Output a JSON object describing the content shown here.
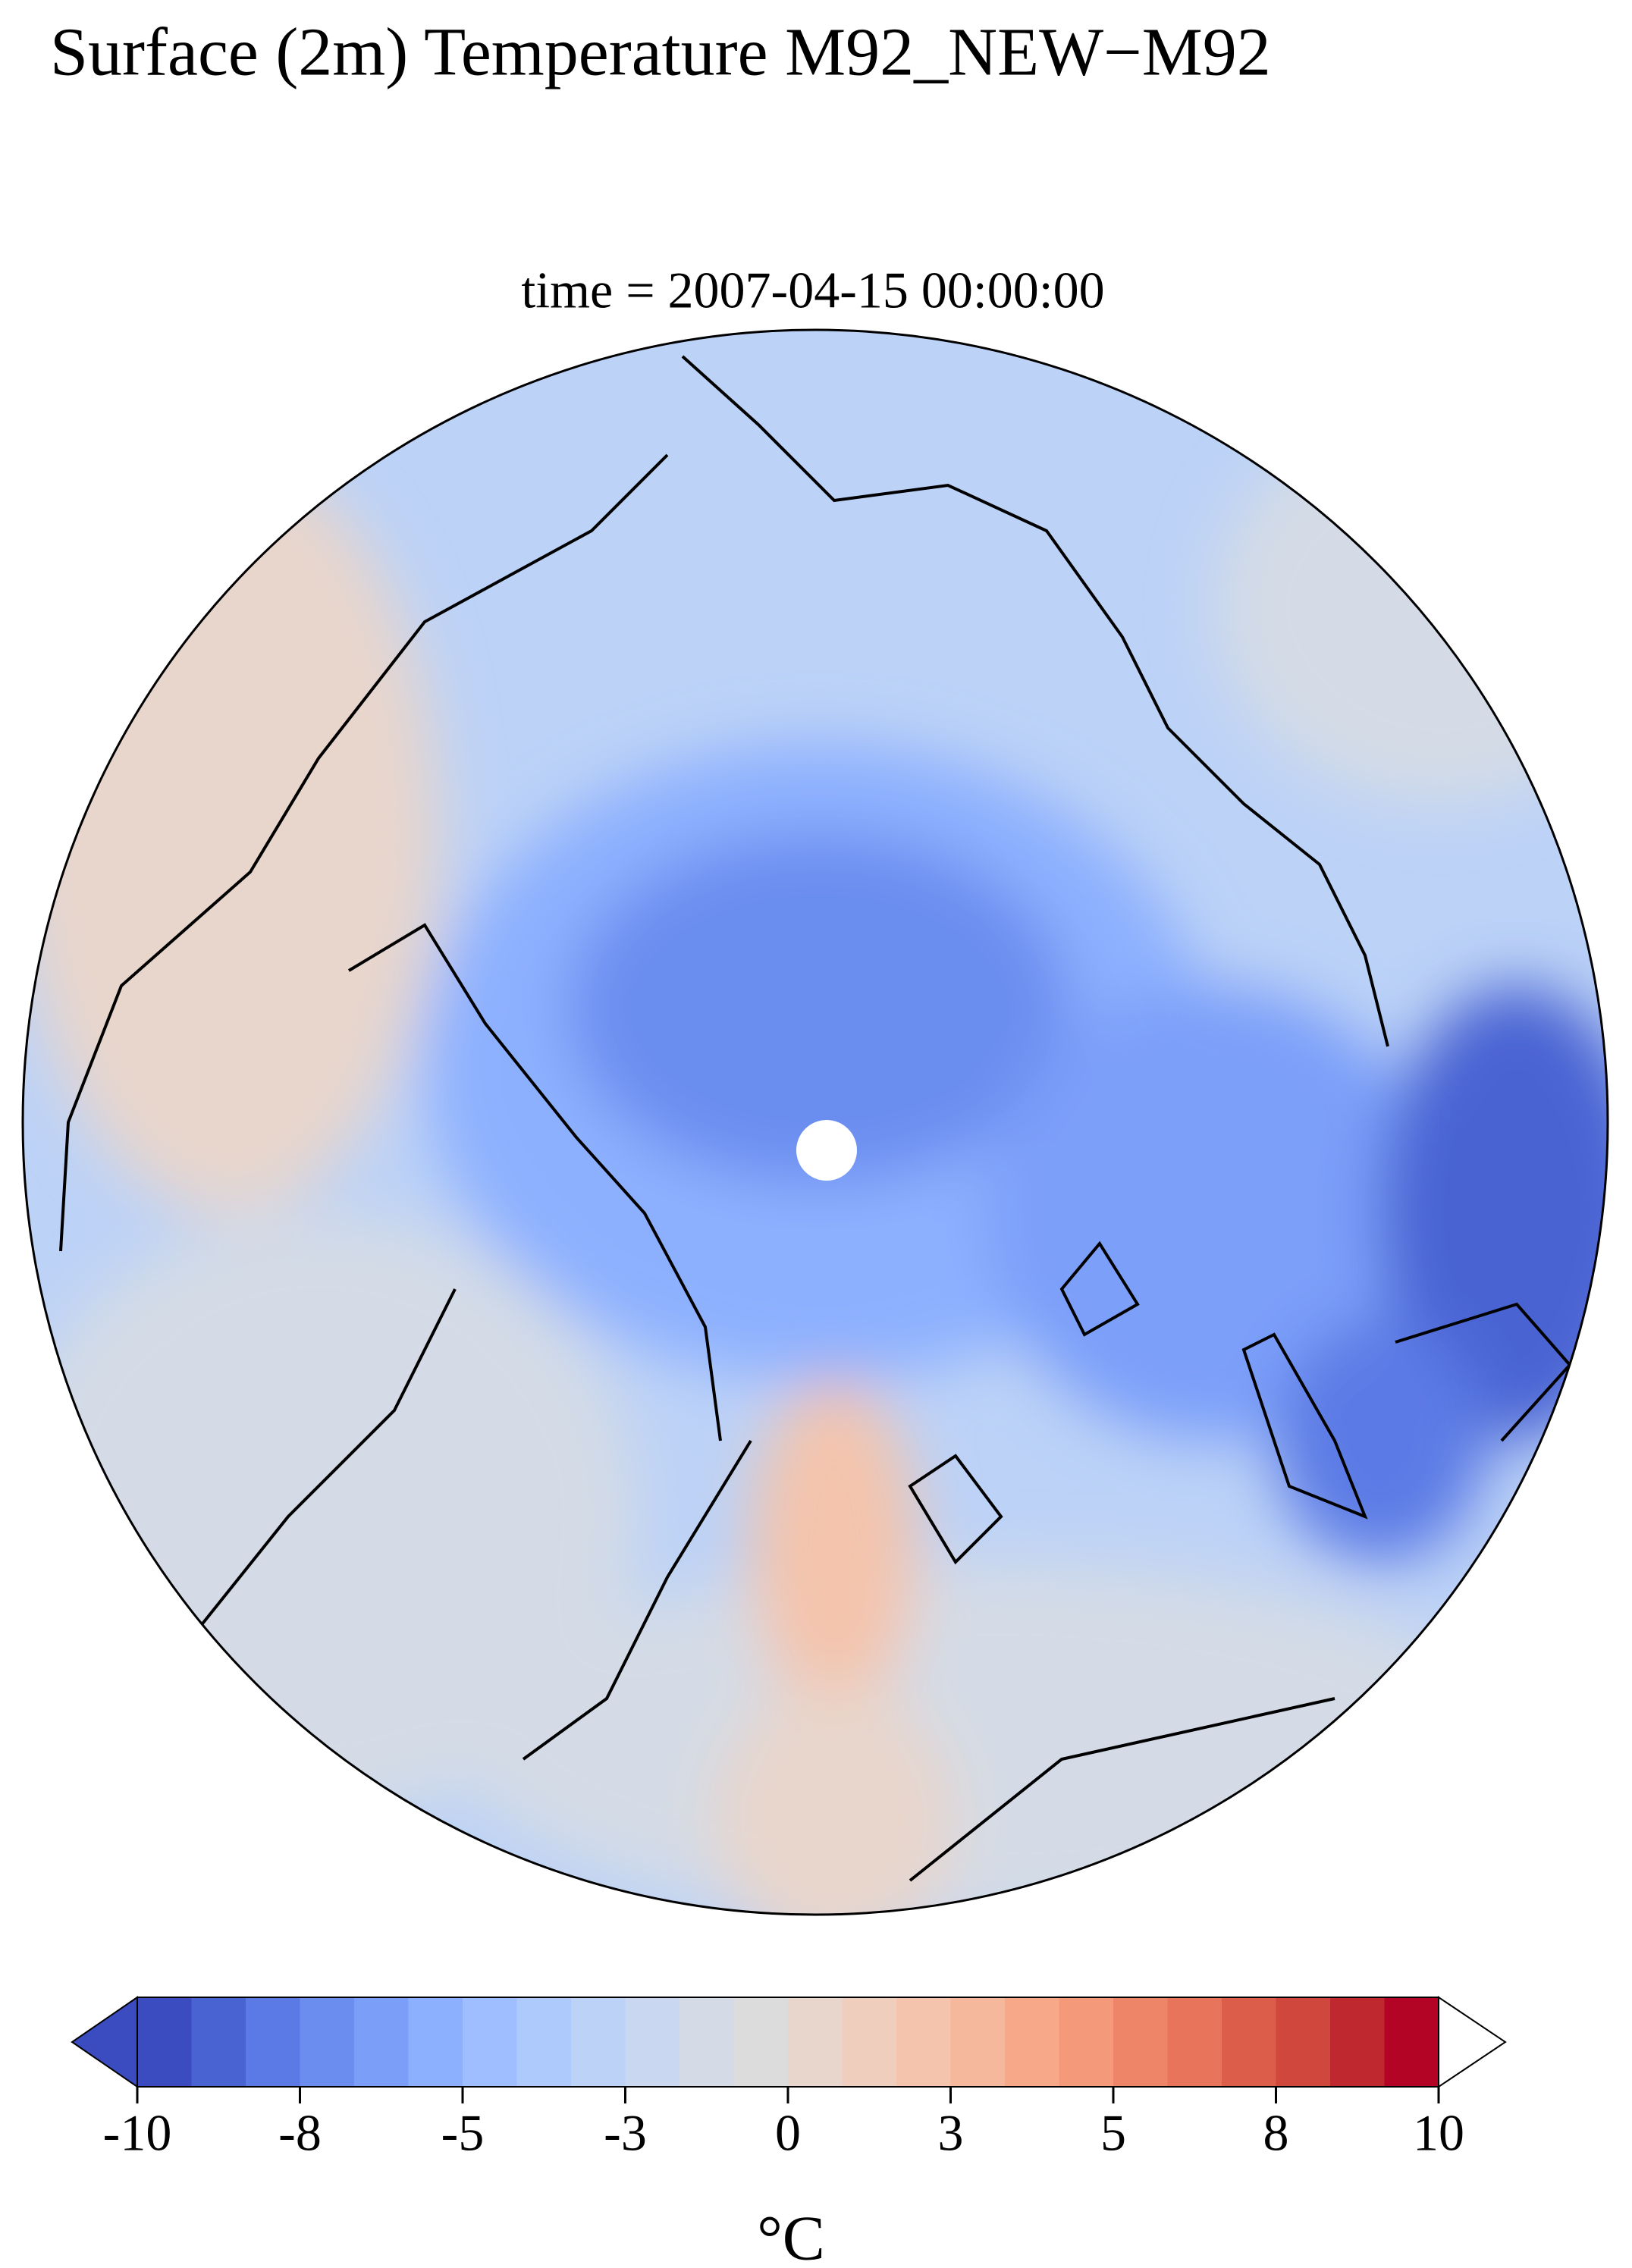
{
  "title": "Surface (2m) Temperature M92_NEW−M92",
  "subtitle": "time = 2007-04-15 00:00:00",
  "colorbar": {
    "label": "°C",
    "clim": [
      -10,
      10
    ],
    "colors": [
      "#3b4cc0",
      "#4a63d3",
      "#5b7ae5",
      "#6b8df0",
      "#7b9ff9",
      "#8db0fe",
      "#9ebeff",
      "#aec9fc",
      "#bcd2f7",
      "#c9d7f0",
      "#d4dbe6",
      "#dddcdc",
      "#e8d6cc",
      "#efcebd",
      "#f4c4ac",
      "#f6b89c",
      "#f7a889",
      "#f49a7b",
      "#ee8468",
      "#e7745b",
      "#dc5d4a",
      "#d0473d",
      "#c0282f",
      "#b40426"
    ],
    "under_color": "#3b4cc0",
    "over_color": "#ffffff",
    "ticks": [
      -10,
      {
        "value": -7.5,
        "label": "-8"
      },
      -5,
      {
        "value": -2.5,
        "label": "-3"
      },
      0,
      {
        "value": 2.5,
        "label": "3"
      },
      5,
      {
        "value": 7.5,
        "label": "8"
      },
      10
    ]
  }
}
